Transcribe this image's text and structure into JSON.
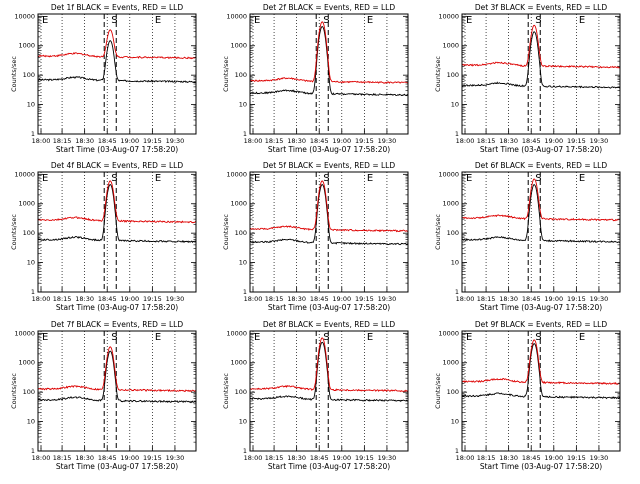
{
  "figure": {
    "background": "#ffffff",
    "events_color": "#000000",
    "lld_color": "#dd0000"
  },
  "chart_data": [
    {
      "type": "line",
      "title": "Det 1f BLACK = Events, RED = LLD",
      "xlabel": "Start Time (03-Aug-07 17:58:20)",
      "ylabel": "Counts/sec",
      "yscale": "log",
      "ylim": [
        1,
        12000
      ],
      "xlim": [
        0,
        105
      ],
      "xticklabels": [
        "18:00",
        "18:15",
        "18:30",
        "18:45",
        "19:00",
        "19:15",
        "19:30"
      ],
      "yticklabels": [
        "1",
        "10",
        "100",
        "1000",
        "10000"
      ],
      "dotted_lines": [
        2,
        16,
        31,
        46,
        61,
        76,
        91
      ],
      "dashed_lines": [
        44,
        52
      ],
      "markers": [
        {
          "label": "E",
          "x": 2
        },
        {
          "label": "S",
          "x": 48
        },
        {
          "label": "E",
          "x": 77
        }
      ],
      "series": [
        {
          "name": "Events",
          "baseline": 70,
          "flare_peak": 1500
        },
        {
          "name": "LLD",
          "baseline": 450,
          "flare_peak": 3500
        }
      ]
    },
    {
      "type": "line",
      "title": "Det 2f BLACK = Events, RED = LLD",
      "xlabel": "Start Time (03-Aug-07 17:58:20)",
      "ylabel": "Counts/sec",
      "yscale": "log",
      "ylim": [
        1,
        12000
      ],
      "xlim": [
        0,
        105
      ],
      "xticklabels": [
        "18:00",
        "18:15",
        "18:30",
        "18:45",
        "19:00",
        "19:15",
        "19:30"
      ],
      "yticklabels": [
        "1",
        "10",
        "100",
        "1000",
        "10000"
      ],
      "dotted_lines": [
        2,
        16,
        31,
        46,
        61,
        76,
        91
      ],
      "dashed_lines": [
        44,
        52
      ],
      "markers": [
        {
          "label": "E",
          "x": 2
        },
        {
          "label": "S",
          "x": 48
        },
        {
          "label": "E",
          "x": 77
        }
      ],
      "series": [
        {
          "name": "Events",
          "baseline": 25,
          "flare_peak": 4500
        },
        {
          "name": "LLD",
          "baseline": 65,
          "flare_peak": 6500
        }
      ]
    },
    {
      "type": "line",
      "title": "Det 3f BLACK = Events, RED = LLD",
      "xlabel": "Start Time (03-Aug-07 17:58:20)",
      "ylabel": "Counts/sec",
      "yscale": "log",
      "ylim": [
        1,
        12000
      ],
      "xlim": [
        0,
        105
      ],
      "xticklabels": [
        "18:00",
        "18:15",
        "18:30",
        "18:45",
        "19:00",
        "19:15",
        "19:30"
      ],
      "yticklabels": [
        "1",
        "10",
        "100",
        "1000",
        "10000"
      ],
      "dotted_lines": [
        2,
        16,
        31,
        46,
        61,
        76,
        91
      ],
      "dashed_lines": [
        44,
        52
      ],
      "markers": [
        {
          "label": "E",
          "x": 2
        },
        {
          "label": "S",
          "x": 48
        },
        {
          "label": "E",
          "x": 77
        }
      ],
      "series": [
        {
          "name": "Events",
          "baseline": 45,
          "flare_peak": 3000
        },
        {
          "name": "LLD",
          "baseline": 220,
          "flare_peak": 5000
        }
      ]
    },
    {
      "type": "line",
      "title": "Det 4f BLACK = Events, RED = LLD",
      "xlabel": "Start Time (03-Aug-07 17:58:20)",
      "ylabel": "Counts/sec",
      "yscale": "log",
      "ylim": [
        1,
        12000
      ],
      "xlim": [
        0,
        105
      ],
      "xticklabels": [
        "18:00",
        "18:15",
        "18:30",
        "18:45",
        "19:00",
        "19:15",
        "19:30"
      ],
      "yticklabels": [
        "1",
        "10",
        "100",
        "1000",
        "10000"
      ],
      "dotted_lines": [
        2,
        16,
        31,
        46,
        61,
        76,
        91
      ],
      "dashed_lines": [
        44,
        52
      ],
      "markers": [
        {
          "label": "E",
          "x": 2
        },
        {
          "label": "S",
          "x": 48
        },
        {
          "label": "E",
          "x": 77
        }
      ],
      "series": [
        {
          "name": "Events",
          "baseline": 60,
          "flare_peak": 4500
        },
        {
          "name": "LLD",
          "baseline": 280,
          "flare_peak": 6000
        }
      ]
    },
    {
      "type": "line",
      "title": "Det 5f BLACK = Events, RED = LLD",
      "xlabel": "Start Time (03-Aug-07 17:58:20)",
      "ylabel": "Counts/sec",
      "yscale": "log",
      "ylim": [
        1,
        12000
      ],
      "xlim": [
        0,
        105
      ],
      "xticklabels": [
        "18:00",
        "18:15",
        "18:30",
        "18:45",
        "19:00",
        "19:15",
        "19:30"
      ],
      "yticklabels": [
        "1",
        "10",
        "100",
        "1000",
        "10000"
      ],
      "dotted_lines": [
        2,
        16,
        31,
        46,
        61,
        76,
        91
      ],
      "dashed_lines": [
        44,
        52
      ],
      "markers": [
        {
          "label": "E",
          "x": 2
        },
        {
          "label": "S",
          "x": 48
        },
        {
          "label": "E",
          "x": 77
        }
      ],
      "series": [
        {
          "name": "Events",
          "baseline": 50,
          "flare_peak": 4500
        },
        {
          "name": "LLD",
          "baseline": 140,
          "flare_peak": 6000
        }
      ]
    },
    {
      "type": "line",
      "title": "Det 6f BLACK = Events, RED = LLD",
      "xlabel": "Start Time (03-Aug-07 17:58:20)",
      "ylabel": "Counts/sec",
      "yscale": "log",
      "ylim": [
        1,
        12000
      ],
      "xlim": [
        0,
        105
      ],
      "xticklabels": [
        "18:00",
        "18:15",
        "18:30",
        "18:45",
        "19:00",
        "19:15",
        "19:30"
      ],
      "yticklabels": [
        "1",
        "10",
        "100",
        "1000",
        "10000"
      ],
      "dotted_lines": [
        2,
        16,
        31,
        46,
        61,
        76,
        91
      ],
      "dashed_lines": [
        44,
        52
      ],
      "markers": [
        {
          "label": "E",
          "x": 2
        },
        {
          "label": "S",
          "x": 48
        },
        {
          "label": "E",
          "x": 77
        }
      ],
      "series": [
        {
          "name": "Events",
          "baseline": 60,
          "flare_peak": 4500
        },
        {
          "name": "LLD",
          "baseline": 330,
          "flare_peak": 7000
        }
      ]
    },
    {
      "type": "line",
      "title": "Det 7f BLACK = Events, RED = LLD",
      "xlabel": "Start Time (03-Aug-07 17:58:20)",
      "ylabel": "Counts/sec",
      "yscale": "log",
      "ylim": [
        1,
        12000
      ],
      "xlim": [
        0,
        105
      ],
      "xticklabels": [
        "18:00",
        "18:15",
        "18:30",
        "18:45",
        "19:00",
        "19:15",
        "19:30"
      ],
      "yticklabels": [
        "1",
        "10",
        "100",
        "1000",
        "10000"
      ],
      "dotted_lines": [
        2,
        16,
        31,
        46,
        61,
        76,
        91
      ],
      "dashed_lines": [
        44,
        52
      ],
      "markers": [
        {
          "label": "E",
          "x": 2
        },
        {
          "label": "S",
          "x": 48
        },
        {
          "label": "E",
          "x": 77
        }
      ],
      "series": [
        {
          "name": "Events",
          "baseline": 55,
          "flare_peak": 2500
        },
        {
          "name": "LLD",
          "baseline": 130,
          "flare_peak": 3500
        }
      ]
    },
    {
      "type": "line",
      "title": "Det 8f BLACK = Events, RED = LLD",
      "xlabel": "Start Time (03-Aug-07 17:58:20)",
      "ylabel": "Counts/sec",
      "yscale": "log",
      "ylim": [
        1,
        12000
      ],
      "xlim": [
        0,
        105
      ],
      "xticklabels": [
        "18:00",
        "18:15",
        "18:30",
        "18:45",
        "19:00",
        "19:15",
        "19:30"
      ],
      "yticklabels": [
        "1",
        "10",
        "100",
        "1000",
        "10000"
      ],
      "dotted_lines": [
        2,
        16,
        31,
        46,
        61,
        76,
        91
      ],
      "dashed_lines": [
        44,
        52
      ],
      "markers": [
        {
          "label": "E",
          "x": 2
        },
        {
          "label": "S",
          "x": 48
        },
        {
          "label": "E",
          "x": 77
        }
      ],
      "series": [
        {
          "name": "Events",
          "baseline": 60,
          "flare_peak": 5000
        },
        {
          "name": "LLD",
          "baseline": 130,
          "flare_peak": 7000
        }
      ]
    },
    {
      "type": "line",
      "title": "Det 9f BLACK = Events, RED = LLD",
      "xlabel": "Start Time (03-Aug-07 17:58:20)",
      "ylabel": "Counts/sec",
      "yscale": "log",
      "ylim": [
        1,
        12000
      ],
      "xlim": [
        0,
        105
      ],
      "xticklabels": [
        "18:00",
        "18:15",
        "18:30",
        "18:45",
        "19:00",
        "19:15",
        "19:30"
      ],
      "yticklabels": [
        "1",
        "10",
        "100",
        "1000",
        "10000"
      ],
      "dotted_lines": [
        2,
        16,
        31,
        46,
        61,
        76,
        91
      ],
      "dashed_lines": [
        44,
        52
      ],
      "markers": [
        {
          "label": "E",
          "x": 2
        },
        {
          "label": "S",
          "x": 48
        },
        {
          "label": "E",
          "x": 77
        }
      ],
      "series": [
        {
          "name": "Events",
          "baseline": 75,
          "flare_peak": 4500
        },
        {
          "name": "LLD",
          "baseline": 230,
          "flare_peak": 6000
        }
      ]
    }
  ]
}
